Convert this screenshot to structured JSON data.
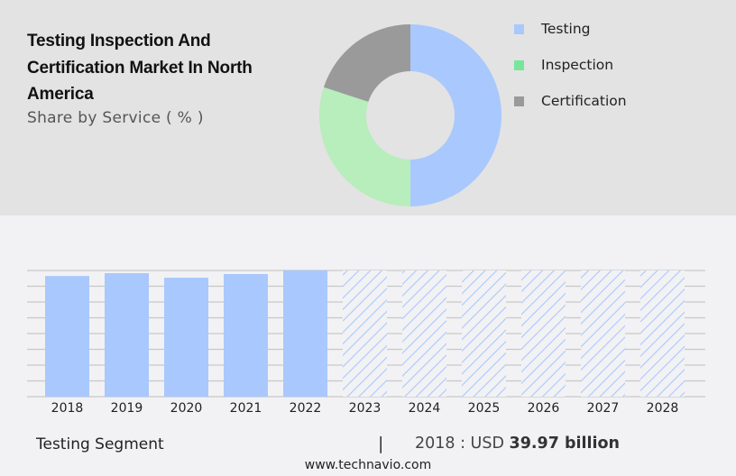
{
  "header": {
    "title": "Testing Inspection And Certification Market In North America",
    "subtitle": "Share by Service ( % )"
  },
  "legend": [
    {
      "label": "Testing",
      "color": "#a9c8fd"
    },
    {
      "label": "Inspection",
      "color": "#77e59a"
    },
    {
      "label": "Certification",
      "color": "#9a9a9a"
    }
  ],
  "footer": {
    "segment": "Testing Segment",
    "separator": "|",
    "year_label": "2018 : USD",
    "value": "39.97 billion",
    "website": "www.technavio.com"
  },
  "chart_data": [
    {
      "type": "pie",
      "title": "Testing Inspection And Certification Market In North America",
      "subtitle": "Share by Service ( % )",
      "donut": true,
      "categories": [
        "Testing",
        "Inspection",
        "Certification"
      ],
      "values": [
        50,
        30,
        20
      ],
      "colors": [
        "#a9c8fd",
        "#b8edbc",
        "#9a9a9a"
      ],
      "legend_position": "right"
    },
    {
      "type": "bar",
      "title": "Testing Segment",
      "categories": [
        "2018",
        "2019",
        "2020",
        "2021",
        "2022",
        "2023",
        "2024",
        "2025",
        "2026",
        "2027",
        "2028"
      ],
      "values": [
        39.97,
        40.9,
        39.4,
        40.6,
        41.8,
        null,
        null,
        null,
        null,
        null,
        null
      ],
      "forecast": [
        false,
        false,
        false,
        false,
        false,
        true,
        true,
        true,
        true,
        true,
        true
      ],
      "unit": "USD billion",
      "annotation": "2018 : USD 39.97 billion",
      "xlabel": "",
      "ylabel": "",
      "ylim": [
        0,
        41.8
      ],
      "grid": true,
      "bar_color": "#a9c8fd"
    }
  ]
}
